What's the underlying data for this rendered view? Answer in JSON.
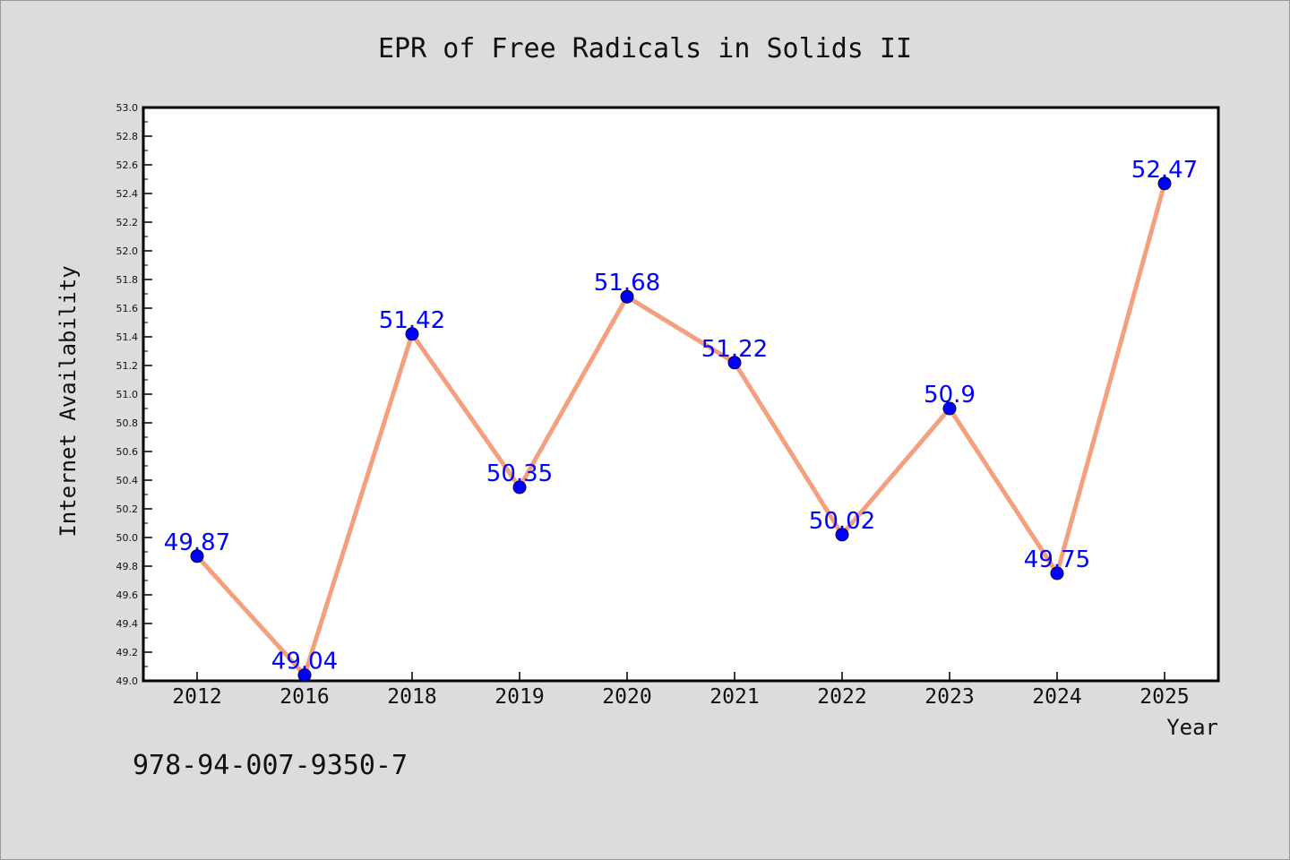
{
  "chart_data": {
    "type": "line",
    "title": "EPR of Free Radicals in Solids II",
    "xlabel": "Year",
    "ylabel": "Internet Availability",
    "categories": [
      "2012",
      "2016",
      "2018",
      "2019",
      "2020",
      "2021",
      "2022",
      "2023",
      "2024",
      "2025"
    ],
    "values": [
      49.87,
      49.04,
      51.42,
      50.35,
      51.68,
      51.22,
      50.02,
      50.9,
      49.75,
      52.47
    ],
    "data_labels": [
      "49.87",
      "49.04",
      "51.42",
      "50.35",
      "51.68",
      "51.22",
      "50.02",
      "50.9",
      "49.75",
      "52.47"
    ],
    "ylim": [
      49.0,
      53.0
    ],
    "yticks": [
      "49.0",
      "49.2",
      "49.4",
      "49.6",
      "49.8",
      "50.0",
      "50.2",
      "50.4",
      "50.6",
      "50.8",
      "51.0",
      "51.2",
      "51.4",
      "51.6",
      "51.8",
      "52.0",
      "52.2",
      "52.4",
      "52.6",
      "52.8",
      "53.0"
    ],
    "grid": false,
    "legend": "none",
    "line_color": "#f4a07e",
    "marker_color": "#0000ff",
    "label_color": "#0000ff"
  },
  "footer": {
    "isbn": "978-94-007-9350-7"
  }
}
